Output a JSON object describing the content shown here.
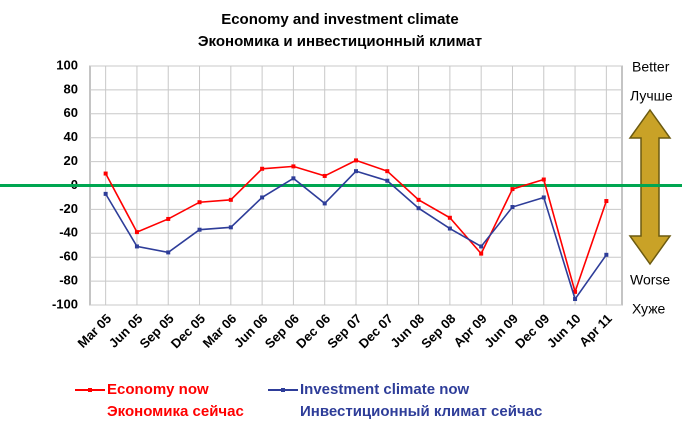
{
  "chart_data": {
    "type": "line",
    "title": "Economy and investment climate",
    "subtitle": "Экономика и инвестиционный климат",
    "categories": [
      "Mar 05",
      "Jun 05",
      "Sep 05",
      "Dec 05",
      "Mar 06",
      "Jun 06",
      "Sep 06",
      "Dec 06",
      "Sep 07",
      "Dec 07",
      "Jun 08",
      "Sep 08",
      "Apr 09",
      "Jun 09",
      "Dec 09",
      "Jun 10",
      "Apr 11"
    ],
    "series": [
      {
        "name": "Economy now",
        "name_ru": "Экономика сейчас",
        "color": "#ff0000",
        "values": [
          10,
          -39,
          -28,
          -14,
          -12,
          14,
          16,
          8,
          21,
          12,
          -12,
          -27,
          -57,
          -3,
          5,
          -89,
          -13
        ]
      },
      {
        "name": "Investment climate now",
        "name_ru": "Инвестиционный климат сейчас",
        "color": "#2e3d99",
        "values": [
          -7,
          -51,
          -56,
          -37,
          -35,
          -10,
          6,
          -15,
          12,
          4,
          -19,
          -36,
          -51,
          -18,
          -10,
          -95,
          -58
        ]
      }
    ],
    "ylim": [
      -100,
      100
    ],
    "yticks": [
      -100,
      -80,
      -60,
      -40,
      -20,
      0,
      20,
      40,
      60,
      80,
      100
    ],
    "grid": true,
    "reference_line": 0,
    "annotations": {
      "better": "Better",
      "better_ru": "Лучше",
      "worse": "Worse",
      "worse_ru": "Хуже"
    }
  }
}
